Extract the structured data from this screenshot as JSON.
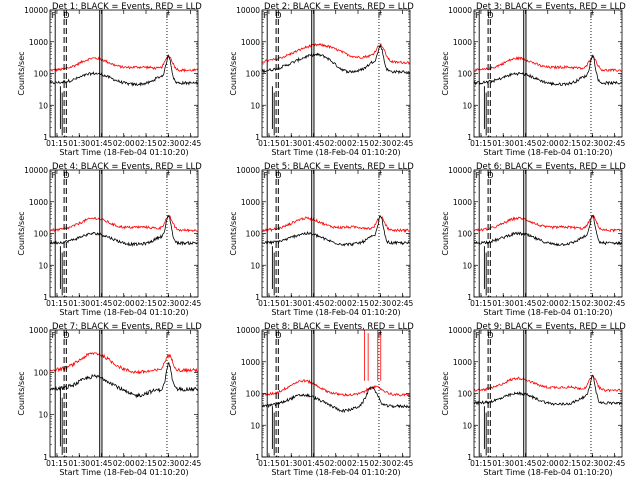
{
  "figure": {
    "start_time_label": "18-Feb-04 01:10:20"
  },
  "colors": {
    "events": "#000000",
    "lld": "#ff0000",
    "background": "#ffffff"
  },
  "chart_data": [
    {
      "type": "line",
      "title": "Det 1: BLACK = Events, RED = LLD",
      "xlabel": "Start Time (18-Feb-04 01:10:20)",
      "ylabel": "Counts/sec",
      "y_scale": "log",
      "ylim": [
        1,
        10000
      ],
      "xticks": [
        "01:15",
        "01:30",
        "01:45",
        "02:00",
        "02:15",
        "02:30",
        "02:45"
      ],
      "yticks": [
        "1",
        "10",
        "100",
        "1000",
        "10000"
      ],
      "markers": [
        "F",
        "D",
        "F"
      ],
      "profile": "A"
    },
    {
      "type": "line",
      "title": "Det 2: BLACK = Events, RED = LLD",
      "xlabel": "Start Time (18-Feb-04 01:10:20)",
      "ylabel": "Counts/sec",
      "y_scale": "log",
      "ylim": [
        1,
        10000
      ],
      "xticks": [
        "01:15",
        "01:30",
        "01:45",
        "02:00",
        "02:15",
        "02:30",
        "02:45"
      ],
      "yticks": [
        "1",
        "10",
        "100",
        "1000",
        "10000"
      ],
      "markers": [
        "F",
        "D",
        "F"
      ],
      "profile": "B"
    },
    {
      "type": "line",
      "title": "Det 3: BLACK = Events, RED = LLD",
      "xlabel": "Start Time (18-Feb-04 01:10:20)",
      "ylabel": "Counts/sec",
      "y_scale": "log",
      "ylim": [
        1,
        10000
      ],
      "xticks": [
        "01:15",
        "01:30",
        "01:45",
        "02:00",
        "02:15",
        "02:30",
        "02:45"
      ],
      "yticks": [
        "1",
        "10",
        "100",
        "1000",
        "10000"
      ],
      "markers": [
        "F",
        "D",
        "F"
      ],
      "profile": "A"
    },
    {
      "type": "line",
      "title": "Det 4: BLACK = Events, RED = LLD",
      "xlabel": "Start Time (18-Feb-04 01:10:20)",
      "ylabel": "Counts/sec",
      "y_scale": "log",
      "ylim": [
        1,
        10000
      ],
      "xticks": [
        "01:15",
        "01:30",
        "01:45",
        "02:00",
        "02:15",
        "02:30",
        "02:45"
      ],
      "yticks": [
        "1",
        "10",
        "100",
        "1000",
        "10000"
      ],
      "markers": [
        "F",
        "D",
        "F"
      ],
      "profile": "A"
    },
    {
      "type": "line",
      "title": "Det 5: BLACK = Events, RED = LLD",
      "xlabel": "Start Time (18-Feb-04 01:10:20)",
      "ylabel": "Counts/sec",
      "y_scale": "log",
      "ylim": [
        1,
        10000
      ],
      "xticks": [
        "01:15",
        "01:30",
        "01:45",
        "02:00",
        "02:15",
        "02:30",
        "02:45"
      ],
      "yticks": [
        "1",
        "10",
        "100",
        "1000",
        "10000"
      ],
      "markers": [
        "F",
        "D",
        "F"
      ],
      "profile": "A"
    },
    {
      "type": "line",
      "title": "Det 6: BLACK = Events, RED = LLD",
      "xlabel": "Start Time (18-Feb-04 01:10:20)",
      "ylabel": "Counts/sec",
      "y_scale": "log",
      "ylim": [
        1,
        10000
      ],
      "xticks": [
        "01:15",
        "01:30",
        "01:45",
        "02:00",
        "02:15",
        "02:30",
        "02:45"
      ],
      "yticks": [
        "1",
        "10",
        "100",
        "1000",
        "10000"
      ],
      "markers": [
        "F",
        "D",
        "F"
      ],
      "profile": "A"
    },
    {
      "type": "line",
      "title": "Det 7: BLACK = Events, RED = LLD",
      "xlabel": "Start Time (18-Feb-04 01:10:20)",
      "ylabel": "Counts/sec",
      "y_scale": "log",
      "ylim": [
        1,
        1000
      ],
      "xticks": [
        "01:15",
        "01:30",
        "01:45",
        "02:00",
        "02:15",
        "02:30",
        "02:45"
      ],
      "yticks": [
        "1",
        "10",
        "100",
        "1000"
      ],
      "markers": [
        "F",
        "D",
        "F"
      ],
      "profile": "C"
    },
    {
      "type": "line",
      "title": "Det 8: BLACK = Events, RED = LLD",
      "xlabel": "Start Time (18-Feb-04 01:10:20)",
      "ylabel": "Counts/sec",
      "y_scale": "log",
      "ylim": [
        1,
        10000
      ],
      "xticks": [
        "01:15",
        "01:30",
        "01:45",
        "02:00",
        "02:15",
        "02:30",
        "02:45"
      ],
      "yticks": [
        "1",
        "10",
        "100",
        "1000",
        "10000"
      ],
      "markers": [
        "F",
        "D",
        "F"
      ],
      "profile": "D"
    },
    {
      "type": "line",
      "title": "Det 9: BLACK = Events, RED = LLD",
      "xlabel": "Start Time (18-Feb-04 01:10:20)",
      "ylabel": "Counts/sec",
      "y_scale": "log",
      "ylim": [
        1,
        10000
      ],
      "xticks": [
        "01:15",
        "01:30",
        "01:45",
        "02:00",
        "02:15",
        "02:30",
        "02:45"
      ],
      "yticks": [
        "1",
        "10",
        "100",
        "1000",
        "10000"
      ],
      "markers": [
        "F",
        "D",
        "F"
      ],
      "profile": "A"
    }
  ]
}
